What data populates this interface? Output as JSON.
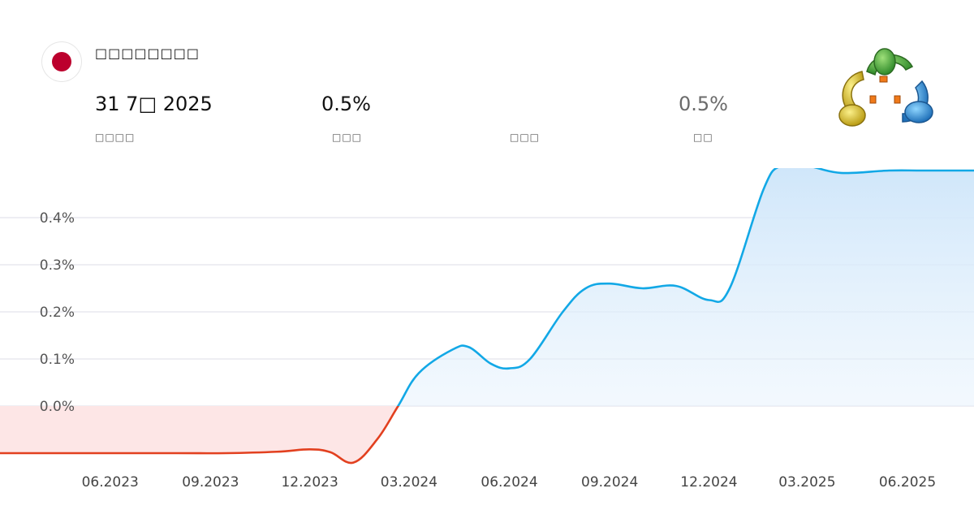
{
  "header": {
    "title": "□□□□□□□□",
    "flag_colors": {
      "disc": "#bc002d",
      "field": "#ffffff"
    },
    "logo_icon": "metatrader-logo-icon",
    "metrics": [
      {
        "value": "31 7□ 2025",
        "label": "□□□□",
        "muted": false
      },
      {
        "value": "0.5%",
        "label": "□□□",
        "muted": false
      },
      {
        "value": "",
        "label": "□□□",
        "muted": false
      },
      {
        "value": "0.5%",
        "label": "□□",
        "muted": true
      }
    ]
  },
  "chart_data": {
    "type": "area",
    "title": "",
    "xlabel": "",
    "ylabel": "",
    "x_ticks": [
      "06.2023",
      "09.2023",
      "12.2023",
      "03.2024",
      "06.2024",
      "09.2024",
      "12.2024",
      "03.2025",
      "06.2025"
    ],
    "y_ticks": [
      "0.4%",
      "0.3%",
      "0.2%",
      "0.1%",
      "0.0%"
    ],
    "y_tick_values": [
      0.4,
      0.3,
      0.2,
      0.1,
      0.0
    ],
    "ylim": [
      -0.25,
      0.55
    ],
    "xlim": [
      "2023-02-20",
      "2025-08-01"
    ],
    "grid": true,
    "colors": {
      "positive_line": "#12a8e6",
      "negative_line": "#e2401f",
      "positive_fill_top": "#cfe6fa",
      "negative_fill": "#fde6e6",
      "grid": "#e9e9ef"
    },
    "series": [
      {
        "x": [
          "2023-02-20",
          "2023-05-01",
          "2023-08-01",
          "2023-09-15",
          "2023-11-01",
          "2023-12-01",
          "2023-12-20",
          "2024-01-10",
          "2024-02-01",
          "2024-02-20",
          "2024-03-10",
          "2024-04-10",
          "2024-04-25",
          "2024-05-15",
          "2024-06-01",
          "2024-06-20",
          "2024-07-20",
          "2024-08-10",
          "2024-09-01",
          "2024-10-01",
          "2024-11-01",
          "2024-12-01",
          "2024-12-20",
          "2025-01-20",
          "2025-02-05",
          "2025-03-01",
          "2025-04-01",
          "2025-05-15",
          "2025-06-15",
          "2025-08-01"
        ],
        "y": [
          -0.1,
          -0.1,
          -0.1,
          -0.1,
          -0.097,
          -0.092,
          -0.098,
          -0.12,
          -0.07,
          0.0,
          0.07,
          0.12,
          0.125,
          0.09,
          0.08,
          0.1,
          0.2,
          0.25,
          0.26,
          0.25,
          0.255,
          0.225,
          0.25,
          0.46,
          0.51,
          0.51,
          0.495,
          0.5,
          0.5,
          0.5
        ]
      }
    ]
  }
}
